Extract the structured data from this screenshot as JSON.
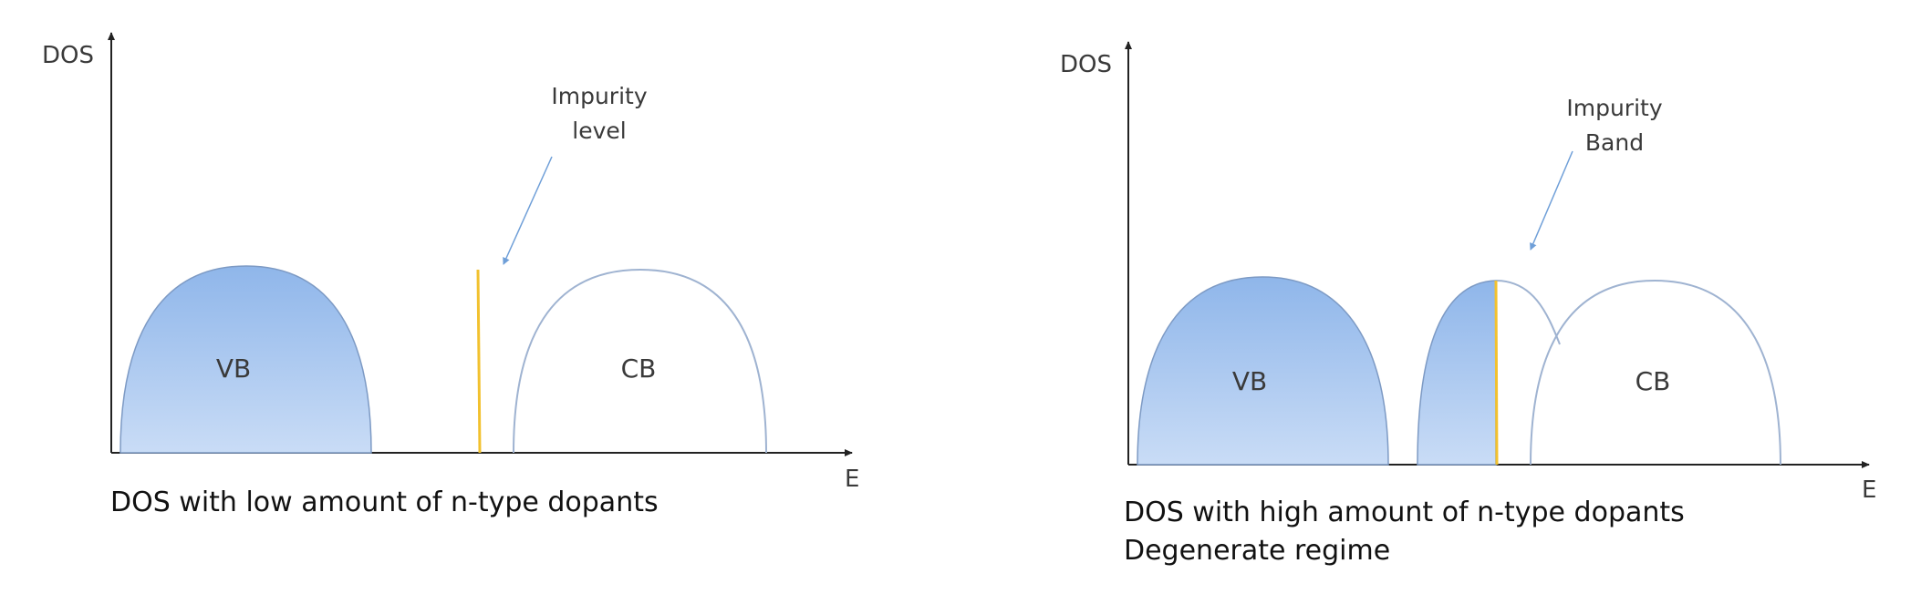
{
  "left_panel": {
    "y_axis_label": "DOS",
    "x_axis_label": "E",
    "valence_band_label": "VB",
    "conduction_band_label": "CB",
    "impurity_label_line1": "Impurity",
    "impurity_label_line2": "level",
    "caption_line1": "DOS with low amount of n-type dopants"
  },
  "right_panel": {
    "y_axis_label": "DOS",
    "x_axis_label": "E",
    "valence_band_label": "VB",
    "conduction_band_label": "CB",
    "impurity_label_line1": "Impurity",
    "impurity_label_line2": "Band",
    "caption_line1": "DOS with high amount of n-type dopants",
    "caption_line2": "Degenerate regime"
  },
  "colors": {
    "filled_band_top": "#8fb6ea",
    "filled_band_bottom": "#c9dcf6",
    "band_outline": "#7d9ac4",
    "empty_band_outline": "#9fb3d1",
    "impurity_line": "#f2c12e",
    "arrow": "#6f9fd8",
    "axis": "#222222"
  }
}
